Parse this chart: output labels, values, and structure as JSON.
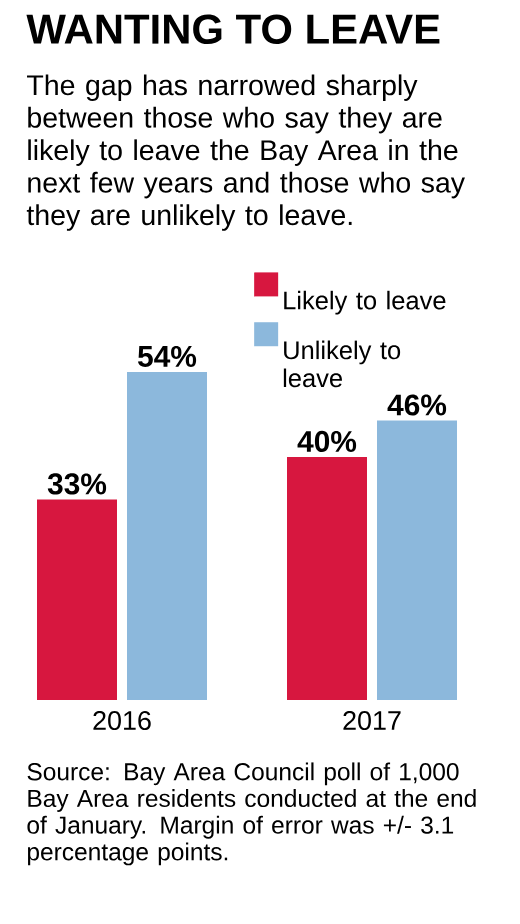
{
  "chart_data": {
    "type": "bar",
    "title": "WANTING TO LEAVE",
    "subtitle": "The gap has narrowed sharply between those who say they are likely to leave the Bay Area in the next few years and those who say they are unlikely to leave.",
    "categories": [
      "2016",
      "2017"
    ],
    "series": [
      {
        "name": "Likely to leave",
        "color": "#d7173f",
        "values": [
          33,
          40
        ],
        "value_labels": [
          "33%",
          "40%"
        ]
      },
      {
        "name": "Unlikely to leave",
        "color": "#8cb8dc",
        "values": [
          54,
          46
        ],
        "value_labels": [
          "54%",
          "46%"
        ]
      }
    ],
    "legend": "top right",
    "annotations": [
      "Source: Bay Area Council poll of 1,000 Bay Area residents conducted at the end of January. Margin of error was +/- 3.1 percentage points."
    ]
  }
}
